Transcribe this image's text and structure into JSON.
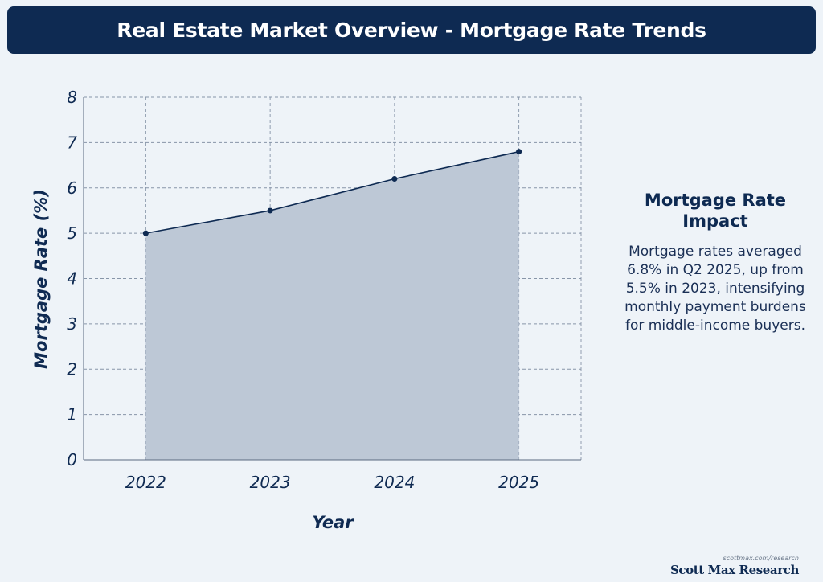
{
  "header": {
    "title": "Real Estate Market Overview - Mortgage Rate Trends"
  },
  "chart_data": {
    "type": "area",
    "title": "",
    "xlabel": "Year",
    "ylabel": "Mortgage Rate (%)",
    "categories": [
      "2022",
      "2023",
      "2024",
      "2025"
    ],
    "values": [
      5.0,
      5.5,
      6.2,
      6.8
    ],
    "ylim": [
      0,
      8
    ],
    "yticks": [
      "0",
      "1",
      "2",
      "3",
      "4",
      "5",
      "6",
      "7",
      "8"
    ],
    "grid": true,
    "legend": "none",
    "colors": {
      "line": "#0e2a52",
      "fill": "#bdc8d6",
      "grid": "#8795a8"
    }
  },
  "side_panel": {
    "title": "Mortgage Rate Impact",
    "body": "Mortgage rates averaged 6.8% in Q2 2025, up from 5.5% in 2023, intensifying monthly payment burdens for middle-income buyers."
  },
  "branding": {
    "url": "scottmax.com/research",
    "name": "Scott Max Research"
  }
}
